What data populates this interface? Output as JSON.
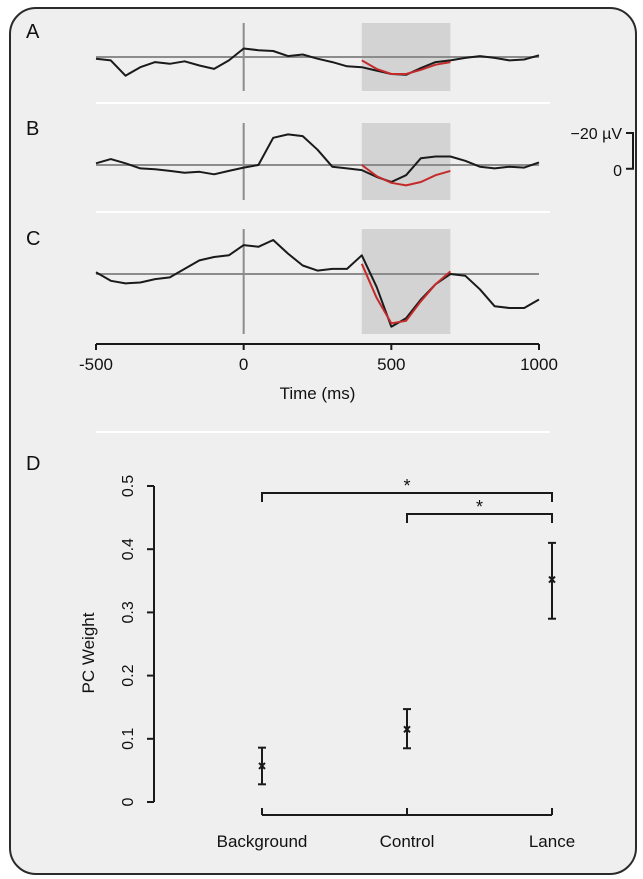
{
  "colors": {
    "panel_bg": "#efefef",
    "frame": "#2b2b2b",
    "trace": "#1a1a1a",
    "fit": "#c42a2a",
    "baseline": "#8c8c8c",
    "window": "#d3d3d3",
    "separator": "#ffffff"
  },
  "chart_data": [
    {
      "type": "line",
      "panel": "A",
      "xlim": [
        -500,
        1000
      ],
      "shaded_window": [
        400,
        700
      ],
      "series": [
        {
          "x": [
            -500,
            -450,
            -400,
            -350,
            -300,
            -250,
            -200,
            -150,
            -100,
            -50,
            0,
            50,
            100,
            150,
            200,
            250,
            300,
            350,
            400,
            450,
            500,
            550,
            600,
            650,
            700,
            750,
            800,
            850,
            900,
            950,
            1000
          ],
          "y": [
            -2,
            -4,
            -22,
            -12,
            -6,
            -8,
            -5,
            -10,
            -14,
            -4,
            10,
            8,
            7,
            1,
            3,
            -2,
            -6,
            -11,
            -12,
            -16,
            -20,
            -21,
            -13,
            -6,
            -4,
            -1,
            1,
            -1,
            -4,
            -3,
            2
          ]
        },
        {
          "x": [
            400,
            450,
            500,
            550,
            600,
            650,
            700
          ],
          "y": [
            -4,
            -14,
            -20,
            -20,
            -15,
            -9,
            -6
          ]
        }
      ]
    },
    {
      "type": "line",
      "panel": "B",
      "xlim": [
        -500,
        1000
      ],
      "shaded_window": [
        400,
        700
      ],
      "series": [
        {
          "x": [
            -500,
            -450,
            -400,
            -350,
            -300,
            -250,
            -200,
            -150,
            -100,
            -50,
            0,
            50,
            100,
            150,
            200,
            250,
            300,
            350,
            400,
            450,
            500,
            550,
            600,
            650,
            700,
            750,
            800,
            850,
            900,
            950,
            1000
          ],
          "y": [
            2,
            7,
            2,
            -4,
            -5,
            -7,
            -9,
            -8,
            -11,
            -7,
            -3,
            0,
            32,
            36,
            34,
            18,
            -2,
            -4,
            -6,
            -14,
            -20,
            -12,
            8,
            10,
            10,
            5,
            -2,
            -4,
            -2,
            -3,
            3
          ]
        },
        {
          "x": [
            400,
            450,
            500,
            550,
            600,
            650,
            700
          ],
          "y": [
            0,
            -13,
            -21,
            -24,
            -20,
            -12,
            -7
          ]
        }
      ]
    },
    {
      "type": "line",
      "panel": "C",
      "xlim": [
        -500,
        1000
      ],
      "shaded_window": [
        400,
        700
      ],
      "series": [
        {
          "x": [
            -500,
            -450,
            -400,
            -350,
            -300,
            -250,
            -200,
            -150,
            -100,
            -50,
            0,
            50,
            100,
            150,
            200,
            250,
            300,
            350,
            400,
            450,
            500,
            550,
            600,
            650,
            700,
            750,
            800,
            850,
            900,
            950,
            1000
          ],
          "y": [
            2,
            -8,
            -11,
            -10,
            -6,
            -4,
            6,
            16,
            20,
            22,
            34,
            32,
            40,
            24,
            10,
            4,
            6,
            6,
            22,
            -15,
            -62,
            -52,
            -30,
            -12,
            0,
            -2,
            -18,
            -38,
            -40,
            -40,
            -30
          ]
        },
        {
          "x": [
            400,
            450,
            500,
            550,
            600,
            650,
            700
          ],
          "y": [
            12,
            -28,
            -58,
            -55,
            -32,
            -12,
            3
          ]
        }
      ],
      "x_ticks": [
        -500,
        0,
        500,
        1000
      ],
      "x_tick_labels": [
        "-500",
        "0",
        "500",
        "1000"
      ],
      "xlabel": "Time (ms)"
    },
    {
      "type": "scatter",
      "panel": "D",
      "categories": [
        "Background",
        "Control",
        "Lance"
      ],
      "values": [
        0.057,
        0.115,
        0.352
      ],
      "error_low": [
        0.028,
        0.085,
        0.29
      ],
      "error_high": [
        0.086,
        0.147,
        0.41
      ],
      "ylabel": "PC Weight",
      "ylim": [
        0,
        0.5
      ],
      "y_ticks": [
        0,
        0.1,
        0.2,
        0.3,
        0.4,
        0.5
      ],
      "y_tick_labels": [
        "0",
        "0.1",
        "0.2",
        "0.3",
        "0.4",
        "0.5"
      ],
      "significance": [
        {
          "from": "Background",
          "to": "Lance",
          "label": "*"
        },
        {
          "from": "Control",
          "to": "Lance",
          "label": "*"
        }
      ]
    }
  ],
  "panel_labels": [
    "A",
    "B",
    "C",
    "D"
  ],
  "scale_bar": {
    "top_label": "−20 µV",
    "bottom_label": "0",
    "value": 20
  }
}
